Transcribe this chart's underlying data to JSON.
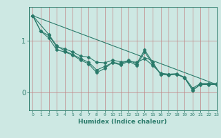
{
  "xlabel": "Humidex (Indice chaleur)",
  "ylabel": "",
  "bg_color": "#cde8e3",
  "line_color": "#2a7a6a",
  "grid_color": "#c08888",
  "xmin": -0.5,
  "xmax": 23,
  "ymin": -0.35,
  "ymax": 1.65,
  "yticks": [
    0,
    1
  ],
  "xticks": [
    0,
    1,
    2,
    3,
    4,
    5,
    6,
    7,
    8,
    9,
    10,
    11,
    12,
    13,
    14,
    15,
    16,
    17,
    18,
    19,
    20,
    21,
    22,
    23
  ],
  "lines": [
    {
      "x": [
        0,
        1,
        2,
        3,
        4,
        5,
        6,
        7,
        8,
        9,
        10,
        11,
        12,
        13,
        14,
        15,
        16,
        17,
        18,
        19,
        20,
        21,
        22,
        23
      ],
      "y": [
        1.48,
        1.18,
        1.05,
        0.82,
        0.78,
        0.72,
        0.62,
        0.55,
        0.38,
        0.46,
        0.58,
        0.55,
        0.62,
        0.55,
        0.82,
        0.58,
        0.35,
        0.34,
        0.35,
        0.28,
        0.04,
        0.16,
        0.16,
        0.16
      ],
      "marker": "D",
      "markersize": 2.5
    },
    {
      "x": [
        0,
        1,
        2,
        3,
        4,
        5,
        6,
        7,
        8,
        9,
        10,
        11,
        12,
        13,
        14,
        15,
        16,
        17,
        18,
        19,
        20,
        21,
        22,
        23
      ],
      "y": [
        1.48,
        1.18,
        1.1,
        0.88,
        0.84,
        0.78,
        0.7,
        0.68,
        0.58,
        0.57,
        0.62,
        0.59,
        0.6,
        0.58,
        0.65,
        0.52,
        0.37,
        0.35,
        0.36,
        0.29,
        0.08,
        0.17,
        0.17,
        0.17
      ],
      "marker": "D",
      "markersize": 2.5
    },
    {
      "x": [
        0,
        2,
        3,
        4,
        5,
        6,
        7,
        8,
        9,
        10,
        11,
        12,
        13,
        14,
        15,
        16,
        17,
        18,
        19,
        20,
        21,
        22,
        23
      ],
      "y": [
        1.48,
        1.12,
        0.9,
        0.8,
        0.73,
        0.65,
        0.58,
        0.43,
        0.5,
        0.57,
        0.53,
        0.6,
        0.52,
        0.78,
        0.55,
        0.35,
        0.33,
        0.35,
        0.28,
        0.04,
        0.15,
        0.15,
        0.15
      ],
      "marker": "D",
      "markersize": 2.5
    },
    {
      "x": [
        0,
        23
      ],
      "y": [
        1.48,
        0.15
      ],
      "marker": null,
      "markersize": 0
    }
  ]
}
